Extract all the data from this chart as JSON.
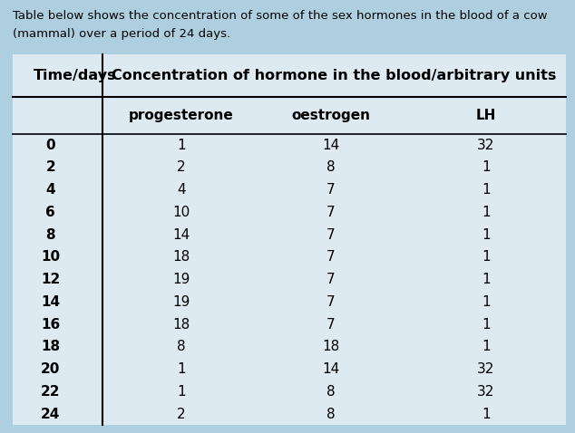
{
  "title_line1": "Table below shows the concentration of some of the sex hormones in the blood of a cow",
  "title_line2": "(mammal) over a period of 24 days.",
  "col_header_left": "Time/days",
  "col_header_right": "Concentration of hormone in the blood/arbitrary units",
  "sub_headers": [
    "progesterone",
    "oestrogen",
    "LH"
  ],
  "time_days": [
    0,
    2,
    4,
    6,
    8,
    10,
    12,
    14,
    16,
    18,
    20,
    22,
    24
  ],
  "progesterone": [
    1,
    2,
    4,
    10,
    14,
    18,
    19,
    19,
    18,
    8,
    1,
    1,
    2
  ],
  "oestrogen": [
    14,
    8,
    7,
    7,
    7,
    7,
    7,
    7,
    7,
    18,
    14,
    8,
    8
  ],
  "LH": [
    32,
    1,
    1,
    1,
    1,
    1,
    1,
    1,
    1,
    1,
    32,
    32,
    1
  ],
  "outer_bg": "#aecfe0",
  "table_bg": "#ddeaf2",
  "title_fontsize": 9.5,
  "header_fontsize": 11.5,
  "subheader_fontsize": 11,
  "data_fontsize": 11
}
